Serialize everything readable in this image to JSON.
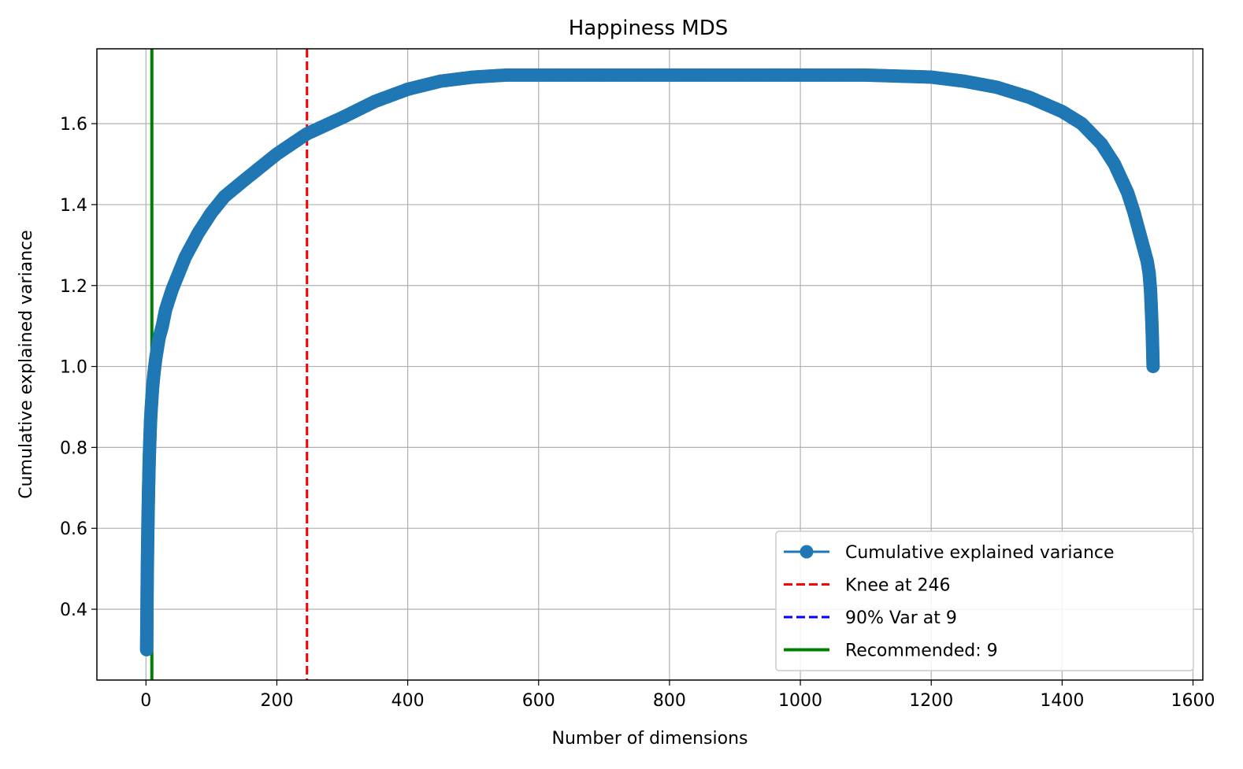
{
  "chart_data": {
    "type": "line",
    "title": "Happiness MDS",
    "xlabel": "Number of dimensions",
    "ylabel": "Cumulative explained variance",
    "xlim": [
      -75,
      1615
    ],
    "ylim": [
      0.225,
      1.785
    ],
    "xticks": [
      0,
      200,
      400,
      600,
      800,
      1000,
      1200,
      1400,
      1600
    ],
    "yticks": [
      0.4,
      0.6,
      0.8,
      1.0,
      1.2,
      1.4,
      1.6
    ],
    "xtick_labels": [
      "0",
      "200",
      "400",
      "600",
      "800",
      "1000",
      "1200",
      "1400",
      "1600"
    ],
    "ytick_labels": [
      "0.4",
      "0.6",
      "0.8",
      "1.0",
      "1.2",
      "1.4",
      "1.6"
    ],
    "grid": true,
    "legend_position": "lower-right",
    "series": [
      {
        "name": "Cumulative explained variance",
        "color": "#1f77b4",
        "marker": "circle",
        "x": [
          1,
          2,
          3,
          4,
          5,
          6,
          7,
          8,
          9,
          10,
          12,
          15,
          20,
          25,
          30,
          40,
          50,
          60,
          80,
          100,
          120,
          150,
          200,
          246,
          300,
          350,
          400,
          450,
          500,
          550,
          600,
          700,
          800,
          900,
          1000,
          1100,
          1200,
          1250,
          1300,
          1350,
          1400,
          1430,
          1460,
          1480,
          1500,
          1510,
          1520,
          1525,
          1530,
          1533,
          1535,
          1536,
          1537,
          1538,
          1539
        ],
        "y": [
          0.3,
          0.49,
          0.61,
          0.7,
          0.77,
          0.82,
          0.865,
          0.895,
          0.92,
          0.945,
          0.98,
          1.02,
          1.07,
          1.1,
          1.14,
          1.19,
          1.23,
          1.27,
          1.33,
          1.38,
          1.42,
          1.46,
          1.525,
          1.575,
          1.615,
          1.655,
          1.685,
          1.705,
          1.715,
          1.72,
          1.72,
          1.72,
          1.72,
          1.72,
          1.72,
          1.72,
          1.715,
          1.705,
          1.69,
          1.665,
          1.63,
          1.6,
          1.55,
          1.5,
          1.43,
          1.38,
          1.32,
          1.29,
          1.26,
          1.23,
          1.19,
          1.155,
          1.115,
          1.065,
          1.0
        ]
      }
    ],
    "reference_lines": [
      {
        "name": "Knee at 246",
        "x": 246,
        "color": "#ff0000",
        "style": "dashed"
      },
      {
        "name": "90% Var at 9",
        "x": 9,
        "color": "#0000ff",
        "style": "dashed"
      },
      {
        "name": "Recommended: 9",
        "x": 9,
        "color": "#008000",
        "style": "solid"
      }
    ]
  }
}
